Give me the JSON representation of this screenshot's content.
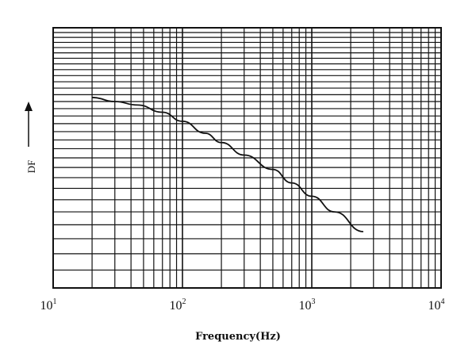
{
  "chart_data": {
    "type": "line",
    "x_scale": "log",
    "y_scale": "log",
    "xlim": [
      10,
      10000
    ],
    "x_ticks": [
      {
        "base": "10",
        "exp": "1"
      },
      {
        "base": "10",
        "exp": "2"
      },
      {
        "base": "10",
        "exp": "3"
      },
      {
        "base": "10",
        "exp": "4"
      }
    ],
    "xlabel": "Frequency(Hz)",
    "ylabel": "DF",
    "grid": true,
    "series": [
      {
        "color": "#111111",
        "points": [
          [
            20,
            0.276
          ],
          [
            30,
            0.27
          ],
          [
            45,
            0.265
          ],
          [
            70,
            0.255
          ],
          [
            100,
            0.243
          ],
          [
            150,
            0.228
          ],
          [
            200,
            0.217
          ],
          [
            300,
            0.203
          ],
          [
            500,
            0.188
          ],
          [
            700,
            0.175
          ],
          [
            1000,
            0.163
          ],
          [
            1500,
            0.15
          ],
          [
            2500,
            0.135
          ]
        ]
      }
    ]
  }
}
